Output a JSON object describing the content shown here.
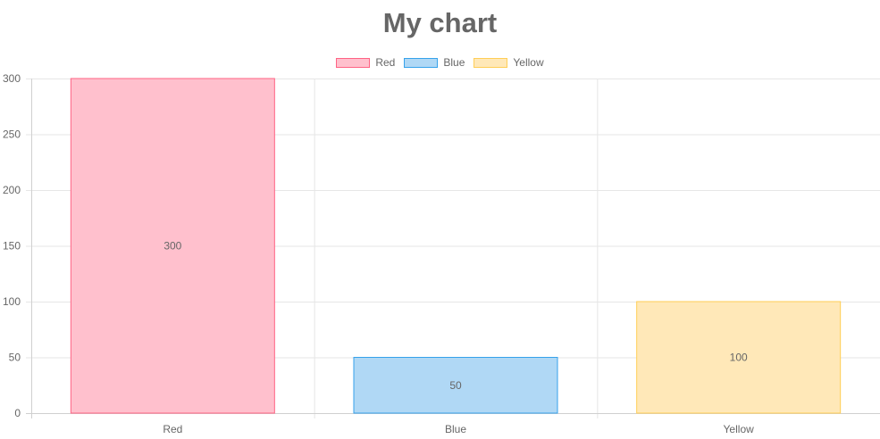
{
  "chart_data": {
    "type": "bar",
    "title": "My chart",
    "categories": [
      "Red",
      "Blue",
      "Yellow"
    ],
    "legend": [
      {
        "label": "Red",
        "fill": "#ffc0cd",
        "border": "#ff6384"
      },
      {
        "label": "Blue",
        "fill": "#b0d8f5",
        "border": "#36a2eb"
      },
      {
        "label": "Yellow",
        "fill": "#ffe8b8",
        "border": "#ffce56"
      }
    ],
    "values": [
      300,
      50,
      100
    ],
    "data_labels": [
      "300",
      "50",
      "100"
    ],
    "yticks": [
      0,
      50,
      100,
      150,
      200,
      250,
      300
    ],
    "ylim": [
      0,
      300
    ],
    "grid": true,
    "legend_position": "top"
  }
}
